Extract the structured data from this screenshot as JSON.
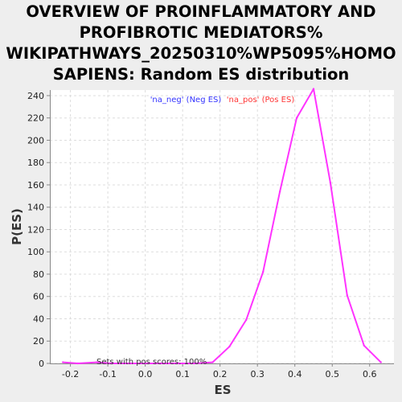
{
  "chart_data": {
    "type": "line",
    "title_lines": [
      "OVERVIEW OF PROINFLAMMATORY AND",
      "PROFIBROTIC MEDIATORS%",
      "WIKIPATHWAYS_20250310%WP5095%HOMO",
      "SAPIENS: Random ES distribution"
    ],
    "xlabel": "ES",
    "ylabel": "P(ES)",
    "xlim": [
      -0.255,
      0.665
    ],
    "ylim": [
      0,
      245
    ],
    "xticks": [
      -0.2,
      -0.1,
      0.0,
      0.1,
      0.2,
      0.3,
      0.4,
      0.5,
      0.6
    ],
    "xtick_labels": [
      "-0.2",
      "-0.1",
      "0.0",
      "0.1",
      "0.2",
      "0.3",
      "0.4",
      "0.5",
      "0.6"
    ],
    "yticks": [
      0,
      20,
      40,
      60,
      80,
      100,
      120,
      140,
      160,
      180,
      200,
      220,
      240
    ],
    "ytick_labels": [
      "0",
      "20",
      "40",
      "60",
      "80",
      "100",
      "120",
      "140",
      "160",
      "180",
      "200",
      "220",
      "240"
    ],
    "grid": true,
    "legend": [
      {
        "label": "'na_neg' (Neg ES)",
        "color": "#3333ff"
      },
      {
        "label": "'na_pos' (Pos ES)",
        "color": "#ff3333"
      }
    ],
    "series": [
      {
        "color": "#ff33ff",
        "x": [
          -0.22,
          -0.18,
          -0.13,
          -0.09,
          -0.04,
          0.0,
          0.04,
          0.09,
          0.13,
          0.18,
          0.225,
          0.27,
          0.315,
          0.36,
          0.405,
          0.45,
          0.495,
          0.54,
          0.585,
          0.63
        ],
        "y": [
          1,
          0,
          1,
          0,
          0,
          0,
          0,
          0,
          0,
          1,
          15,
          39,
          82,
          154,
          220,
          246,
          162,
          61,
          16,
          1
        ]
      }
    ],
    "annotation": "Sets with pos scores: 100%"
  }
}
